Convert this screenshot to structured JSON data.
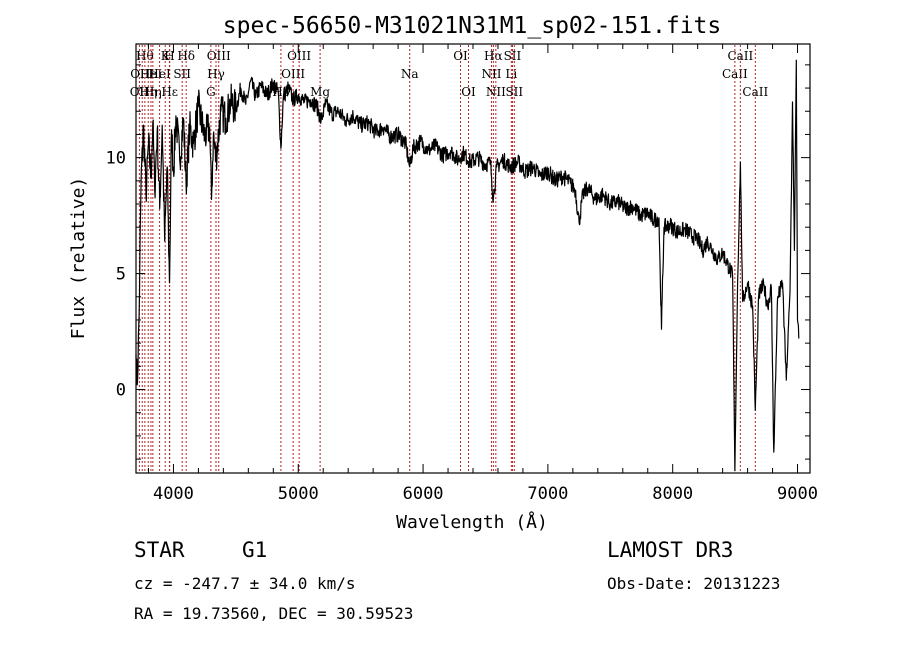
{
  "chart_data": {
    "type": "line",
    "title": "spec-56650-M31021N31M1_sp02-151.fits",
    "xlabel": "Wavelength (Å)",
    "ylabel": "Flux (relative)",
    "xlim": [
      3700,
      9100
    ],
    "ylim": [
      -3.6,
      14.9
    ],
    "xticks": [
      4000,
      5000,
      6000,
      7000,
      8000,
      9000
    ],
    "yticks": [
      0,
      5,
      10
    ],
    "grid": false,
    "series": [
      {
        "name": "spectrum",
        "points": [
          [
            3700,
            1.5
          ],
          [
            3710,
            0.2
          ],
          [
            3725,
            3.2
          ],
          [
            3740,
            8.8
          ],
          [
            3760,
            11.4
          ],
          [
            3780,
            8.4
          ],
          [
            3800,
            10.6
          ],
          [
            3820,
            9.2
          ],
          [
            3835,
            11.5
          ],
          [
            3850,
            8.6
          ],
          [
            3870,
            11.2
          ],
          [
            3890,
            7.8
          ],
          [
            3910,
            11.4
          ],
          [
            3930,
            6.4
          ],
          [
            3950,
            9.6
          ],
          [
            3968,
            4.6
          ],
          [
            3985,
            11.2
          ],
          [
            4000,
            9.4
          ],
          [
            4020,
            11.8
          ],
          [
            4050,
            9.9
          ],
          [
            4080,
            11.7
          ],
          [
            4101,
            8.8
          ],
          [
            4130,
            11.3
          ],
          [
            4160,
            10.6
          ],
          [
            4200,
            12.2
          ],
          [
            4250,
            10.9
          ],
          [
            4290,
            11.3
          ],
          [
            4305,
            8.2
          ],
          [
            4320,
            11.0
          ],
          [
            4340,
            9.9
          ],
          [
            4380,
            12.0
          ],
          [
            4420,
            11.7
          ],
          [
            4460,
            12.4
          ],
          [
            4500,
            12.1
          ],
          [
            4540,
            13.0
          ],
          [
            4580,
            12.3
          ],
          [
            4620,
            13.3
          ],
          [
            4660,
            12.6
          ],
          [
            4700,
            13.1
          ],
          [
            4750,
            12.7
          ],
          [
            4800,
            13.2
          ],
          [
            4840,
            12.8
          ],
          [
            4861,
            10.4
          ],
          [
            4880,
            12.6
          ],
          [
            4920,
            13.0
          ],
          [
            4960,
            12.5
          ],
          [
            5000,
            12.7
          ],
          [
            5050,
            12.4
          ],
          [
            5100,
            12.5
          ],
          [
            5150,
            12.2
          ],
          [
            5183,
            11.6
          ],
          [
            5220,
            12.3
          ],
          [
            5270,
            11.9
          ],
          [
            5320,
            12.0
          ],
          [
            5380,
            11.6
          ],
          [
            5440,
            11.8
          ],
          [
            5500,
            11.4
          ],
          [
            5560,
            11.5
          ],
          [
            5620,
            11.1
          ],
          [
            5680,
            11.3
          ],
          [
            5740,
            10.9
          ],
          [
            5800,
            11.0
          ],
          [
            5860,
            10.6
          ],
          [
            5893,
            9.6
          ],
          [
            5920,
            10.4
          ],
          [
            5980,
            10.7
          ],
          [
            6040,
            10.3
          ],
          [
            6100,
            10.5
          ],
          [
            6160,
            10.1
          ],
          [
            6220,
            10.3
          ],
          [
            6280,
            9.9
          ],
          [
            6320,
            10.2
          ],
          [
            6380,
            9.8
          ],
          [
            6440,
            10.0
          ],
          [
            6500,
            9.7
          ],
          [
            6540,
            9.8
          ],
          [
            6563,
            8.2
          ],
          [
            6590,
            9.6
          ],
          [
            6640,
            9.9
          ],
          [
            6700,
            9.6
          ],
          [
            6760,
            9.8
          ],
          [
            6820,
            9.4
          ],
          [
            6880,
            9.6
          ],
          [
            6940,
            9.2
          ],
          [
            7000,
            9.4
          ],
          [
            7060,
            9.0
          ],
          [
            7120,
            9.2
          ],
          [
            7180,
            8.9
          ],
          [
            7220,
            8.6
          ],
          [
            7250,
            7.2
          ],
          [
            7280,
            8.4
          ],
          [
            7320,
            8.7
          ],
          [
            7380,
            8.2
          ],
          [
            7440,
            8.4
          ],
          [
            7500,
            8.0
          ],
          [
            7560,
            8.1
          ],
          [
            7620,
            7.8
          ],
          [
            7680,
            7.9
          ],
          [
            7740,
            7.5
          ],
          [
            7800,
            7.6
          ],
          [
            7850,
            7.3
          ],
          [
            7890,
            7.4
          ],
          [
            7910,
            2.6
          ],
          [
            7930,
            7.0
          ],
          [
            7980,
            7.1
          ],
          [
            8040,
            6.8
          ],
          [
            8100,
            6.9
          ],
          [
            8160,
            6.6
          ],
          [
            8200,
            6.5
          ],
          [
            8240,
            6.0
          ],
          [
            8280,
            6.4
          ],
          [
            8320,
            6.0
          ],
          [
            8360,
            5.6
          ],
          [
            8400,
            5.9
          ],
          [
            8440,
            5.4
          ],
          [
            8480,
            4.9
          ],
          [
            8498,
            -3.5
          ],
          [
            8520,
            4.6
          ],
          [
            8542,
            9.8
          ],
          [
            8560,
            3.8
          ],
          [
            8600,
            4.6
          ],
          [
            8640,
            3.6
          ],
          [
            8662,
            -0.9
          ],
          [
            8690,
            4.1
          ],
          [
            8730,
            4.5
          ],
          [
            8760,
            3.6
          ],
          [
            8790,
            4.4
          ],
          [
            8810,
            -2.7
          ],
          [
            8840,
            3.9
          ],
          [
            8880,
            4.6
          ],
          [
            8910,
            0.4
          ],
          [
            8940,
            4.2
          ],
          [
            8960,
            12.4
          ],
          [
            8975,
            6.0
          ],
          [
            8990,
            14.2
          ],
          [
            9000,
            3.0
          ],
          [
            9010,
            2.2
          ]
        ]
      }
    ],
    "lines": [
      {
        "x": 3727,
        "label": "OII",
        "row": 2
      },
      {
        "x": 3750,
        "label": "OIII",
        "row": 1
      },
      {
        "x": 3771,
        "label": "Hθ",
        "row": 0
      },
      {
        "x": 3798,
        "label": "Hη",
        "row": 2
      },
      {
        "x": 3820,
        "label": "HeI",
        "row": 1
      },
      {
        "x": 3835,
        "label": "Hη",
        "row": 2
      },
      {
        "x": 3889,
        "label": "HeI",
        "row": 1
      },
      {
        "x": 3934,
        "label": "K",
        "row": 0
      },
      {
        "x": 3968,
        "label": "H",
        "row": 0
      },
      {
        "x": 3970,
        "label": "Hε",
        "row": 2
      },
      {
        "x": 4070,
        "label": "SII",
        "row": 1
      },
      {
        "x": 4102,
        "label": "Hδ",
        "row": 0
      },
      {
        "x": 4300,
        "label": "G",
        "row": 2
      },
      {
        "x": 4341,
        "label": "Hγ",
        "row": 1
      },
      {
        "x": 4363,
        "label": "OIII",
        "row": 0
      },
      {
        "x": 4861,
        "label": "Hβ",
        "row": 2
      },
      {
        "x": 4959,
        "label": "OIII",
        "row": 1
      },
      {
        "x": 5007,
        "label": "OIII",
        "row": 0
      },
      {
        "x": 5175,
        "label": "Mg",
        "row": 2
      },
      {
        "x": 5893,
        "label": "Na",
        "row": 1
      },
      {
        "x": 6300,
        "label": "OI",
        "row": 0
      },
      {
        "x": 6364,
        "label": "OI",
        "row": 2
      },
      {
        "x": 6548,
        "label": "NII",
        "row": 1
      },
      {
        "x": 6563,
        "label": "Hα",
        "row": 0
      },
      {
        "x": 6583,
        "label": "NII",
        "row": 2
      },
      {
        "x": 6707,
        "label": "Li",
        "row": 1
      },
      {
        "x": 6716,
        "label": "SII",
        "row": 0
      },
      {
        "x": 6731,
        "label": "SII",
        "row": 2
      },
      {
        "x": 8498,
        "label": "CaII",
        "row": 1
      },
      {
        "x": 8542,
        "label": "CaII",
        "row": 0
      },
      {
        "x": 8662,
        "label": "CaII",
        "row": 2
      }
    ]
  },
  "info": {
    "class": "STAR",
    "subclass": "G1",
    "survey": "LAMOST DR3",
    "cz": "cz = -247.7 ± 34.0 km/s",
    "obs_date": "Obs-Date: 20131223",
    "coords": "RA =  19.73560, DEC =  30.59523"
  }
}
